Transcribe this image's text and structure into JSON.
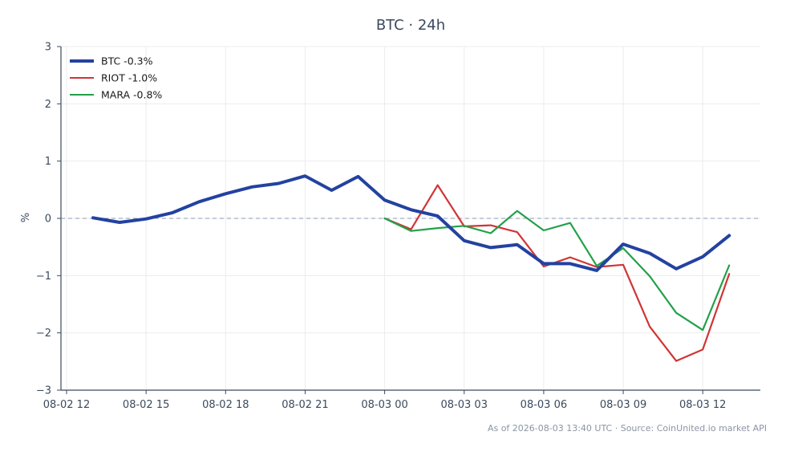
{
  "chart_data": {
    "type": "line",
    "title": "BTC · 24h",
    "xlabel": "",
    "ylabel": "%",
    "ylim": [
      -3,
      3
    ],
    "xlim_hours": [
      12,
      38
    ],
    "x_ticks": [
      {
        "hour": 12,
        "label": "08-02 12"
      },
      {
        "hour": 15,
        "label": "08-02 15"
      },
      {
        "hour": 18,
        "label": "08-02 18"
      },
      {
        "hour": 21,
        "label": "08-02 21"
      },
      {
        "hour": 24,
        "label": "08-03 00"
      },
      {
        "hour": 27,
        "label": "08-03 03"
      },
      {
        "hour": 30,
        "label": "08-03 06"
      },
      {
        "hour": 33,
        "label": "08-03 09"
      },
      {
        "hour": 36,
        "label": "08-03 12"
      }
    ],
    "y_ticks": [
      {
        "value": 3,
        "label": "3"
      },
      {
        "value": 2,
        "label": "2"
      },
      {
        "value": 1,
        "label": "1"
      },
      {
        "value": 0,
        "label": "0"
      },
      {
        "value": -1,
        "label": "−1"
      },
      {
        "value": -2,
        "label": "−2"
      },
      {
        "value": -3,
        "label": "−3"
      }
    ],
    "grid": true,
    "zero_line": true,
    "legend_position": "top-left",
    "series": [
      {
        "name": "BTC -0.3%",
        "color": "#2342a0",
        "points": [
          [
            13,
            0.01
          ],
          [
            14,
            -0.07
          ],
          [
            15,
            -0.01
          ],
          [
            16,
            0.1
          ],
          [
            17,
            0.29
          ],
          [
            18,
            0.43
          ],
          [
            19,
            0.55
          ],
          [
            20,
            0.61
          ],
          [
            21,
            0.74
          ],
          [
            22,
            0.49
          ],
          [
            23,
            0.73
          ],
          [
            24,
            0.32
          ],
          [
            25,
            0.15
          ],
          [
            26,
            0.04
          ],
          [
            27,
            -0.39
          ],
          [
            28,
            -0.51
          ],
          [
            29,
            -0.46
          ],
          [
            30,
            -0.79
          ],
          [
            31,
            -0.79
          ],
          [
            32,
            -0.91
          ],
          [
            33,
            -0.45
          ],
          [
            34,
            -0.61
          ],
          [
            35,
            -0.88
          ],
          [
            36,
            -0.67
          ],
          [
            37,
            -0.3
          ]
        ]
      },
      {
        "name": "RIOT -1.0%",
        "color": "#d03535",
        "points": [
          [
            24,
            0.0
          ],
          [
            25,
            -0.19
          ],
          [
            26,
            0.58
          ],
          [
            27,
            -0.14
          ],
          [
            28,
            -0.12
          ],
          [
            29,
            -0.24
          ],
          [
            30,
            -0.84
          ],
          [
            31,
            -0.68
          ],
          [
            32,
            -0.85
          ],
          [
            33,
            -0.81
          ],
          [
            34,
            -1.89
          ],
          [
            35,
            -2.49
          ],
          [
            36,
            -2.29
          ],
          [
            37,
            -0.97
          ]
        ]
      },
      {
        "name": "MARA -0.8%",
        "color": "#23a04a",
        "points": [
          [
            24,
            0.0
          ],
          [
            25,
            -0.22
          ],
          [
            26,
            -0.17
          ],
          [
            27,
            -0.13
          ],
          [
            28,
            -0.26
          ],
          [
            29,
            0.13
          ],
          [
            30,
            -0.21
          ],
          [
            31,
            -0.08
          ],
          [
            32,
            -0.83
          ],
          [
            33,
            -0.52
          ],
          [
            34,
            -1.01
          ],
          [
            35,
            -1.65
          ],
          [
            36,
            -1.95
          ],
          [
            37,
            -0.82
          ]
        ]
      }
    ]
  },
  "footer": {
    "source_text": "As of 2026-08-03 13:40 UTC · Source: CoinUnited.io market API"
  }
}
